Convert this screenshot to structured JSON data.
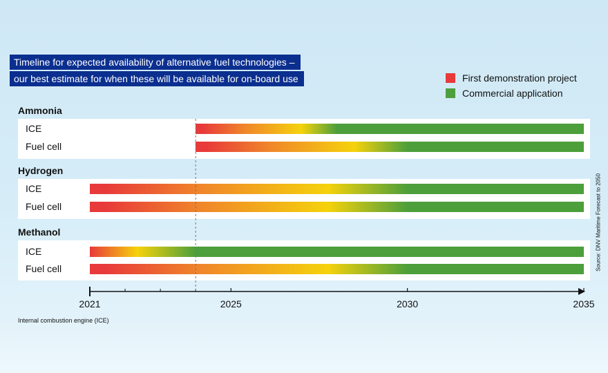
{
  "title": {
    "line1": "Timeline for expected availability of alternative fuel technologies –",
    "line2": "our best estimate for when these will be available for on-board use"
  },
  "legend": [
    {
      "label": "First demonstration project",
      "color": "#e83a3a"
    },
    {
      "label": "Commercial application",
      "color": "#4c9f3b"
    }
  ],
  "colors": {
    "red": "#e83a3a",
    "orange": "#f0862a",
    "yellow": "#f5d20c",
    "green": "#4c9f3b"
  },
  "chart_data": {
    "type": "bar",
    "x_axis": {
      "min": 2021,
      "max": 2035,
      "ticks": [
        "2021",
        "2025",
        "2030",
        "2035"
      ],
      "minor_ticks": [
        2022,
        2023,
        2024
      ]
    },
    "marker_year": 2024,
    "groups": [
      {
        "name": "Ammonia",
        "rows": [
          {
            "label": "ICE",
            "start": 2024,
            "end": 2035,
            "commercial_from": 2028
          },
          {
            "label": "Fuel cell",
            "start": 2024,
            "end": 2035,
            "commercial_from": 2030
          }
        ]
      },
      {
        "name": "Hydrogen",
        "rows": [
          {
            "label": "ICE",
            "start": 2021,
            "end": 2035,
            "commercial_from": 2030
          },
          {
            "label": "Fuel cell",
            "start": 2021,
            "end": 2035,
            "commercial_from": 2030
          }
        ]
      },
      {
        "name": "Methanol",
        "rows": [
          {
            "label": "ICE",
            "start": 2021,
            "end": 2035,
            "commercial_from": 2024
          },
          {
            "label": "Fuel cell",
            "start": 2021,
            "end": 2035,
            "commercial_from": 2030
          }
        ]
      }
    ]
  },
  "note": "Internal combustion engine (ICE)",
  "source": "Source: DNV Maritime Forecast to 2050"
}
